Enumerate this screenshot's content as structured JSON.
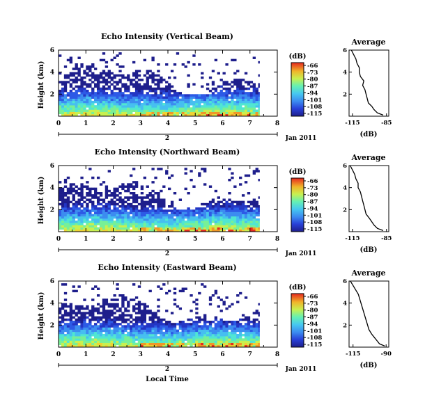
{
  "chart_data": [
    {
      "type": "heatmap",
      "title": "Echo Intensity (Vertical Beam)",
      "ylabel": "Height (km)",
      "xlim": [
        0,
        8
      ],
      "ylim": [
        0,
        6
      ],
      "x_ticks": [
        0,
        1,
        2,
        3,
        4,
        5,
        6,
        7,
        8
      ],
      "y_ticks": [
        2,
        4,
        6
      ],
      "data_end_time": 7.35,
      "date_axis": {
        "label": "2",
        "end_label": "Jan 2011"
      },
      "colorbar": {
        "label": "(dB)",
        "ticks": [
          -66,
          -73,
          -80,
          -87,
          -94,
          -101,
          -108,
          -115
        ]
      },
      "average_profile": {
        "title": "Average",
        "xlabel": "(dB)",
        "x_ticks": [
          -115,
          -85
        ],
        "xlim": [
          -118,
          -83
        ],
        "heights": [
          6,
          5.6,
          5.2,
          4.8,
          4.4,
          4.0,
          3.6,
          3.2,
          2.8,
          2.4,
          2.0,
          1.6,
          1.2,
          0.9,
          0.6,
          0.3,
          0.1
        ],
        "values": [
          -116,
          -114,
          -112,
          -111,
          -109,
          -109,
          -108,
          -105,
          -106,
          -104,
          -103,
          -102,
          -101,
          -98,
          -96,
          -93,
          -88
        ]
      }
    },
    {
      "type": "heatmap",
      "title": "Echo Intensity (Northward Beam)",
      "ylabel": "Height (km)",
      "xlim": [
        0,
        8
      ],
      "ylim": [
        0,
        6
      ],
      "x_ticks": [
        0,
        1,
        2,
        3,
        4,
        5,
        6,
        7,
        8
      ],
      "y_ticks": [
        2,
        4,
        6
      ],
      "data_end_time": 7.35,
      "date_axis": {
        "label": "2",
        "end_label": "Jan 2011"
      },
      "colorbar": {
        "label": "(dB)",
        "ticks": [
          -66,
          -73,
          -80,
          -87,
          -94,
          -101,
          -108,
          -115
        ]
      },
      "average_profile": {
        "title": "Average",
        "xlabel": "(dB)",
        "x_ticks": [
          -115,
          -85
        ],
        "xlim": [
          -118,
          -83
        ],
        "heights": [
          6,
          5.6,
          5.2,
          4.8,
          4.4,
          4.0,
          3.6,
          3.2,
          2.8,
          2.4,
          2.0,
          1.6,
          1.2,
          0.9,
          0.6,
          0.3,
          0.1
        ],
        "values": [
          -117,
          -115,
          -113,
          -112,
          -110,
          -110,
          -108,
          -107,
          -106,
          -105,
          -104,
          -103,
          -100,
          -98,
          -96,
          -93,
          -88
        ]
      }
    },
    {
      "type": "heatmap",
      "title": "Echo Intensity (Eastward Beam)",
      "ylabel": "Height (km)",
      "xlabel": "Local Time",
      "xlim": [
        0,
        8
      ],
      "ylim": [
        0,
        6
      ],
      "x_ticks": [
        0,
        1,
        2,
        3,
        4,
        5,
        6,
        7,
        8
      ],
      "y_ticks": [
        2,
        4,
        6
      ],
      "data_end_time": 7.35,
      "date_axis": {
        "label": "2",
        "end_label": "Jan 2011"
      },
      "colorbar": {
        "label": "(dB)",
        "ticks": [
          -66,
          -73,
          -80,
          -87,
          -94,
          -101,
          -108,
          -115
        ]
      },
      "average_profile": {
        "title": "Average",
        "xlabel": "(dB)",
        "x_ticks": [
          -115,
          -90
        ],
        "xlim": [
          -118,
          -88
        ],
        "heights": [
          6,
          5.6,
          5.2,
          4.8,
          4.4,
          4.0,
          3.6,
          3.2,
          2.8,
          2.4,
          2.0,
          1.6,
          1.2,
          0.9,
          0.6,
          0.3,
          0.1
        ],
        "values": [
          -117,
          -115,
          -113,
          -111,
          -110,
          -109,
          -108,
          -107,
          -106,
          -105,
          -104,
          -103,
          -101,
          -99,
          -97,
          -95,
          -91
        ]
      }
    }
  ]
}
